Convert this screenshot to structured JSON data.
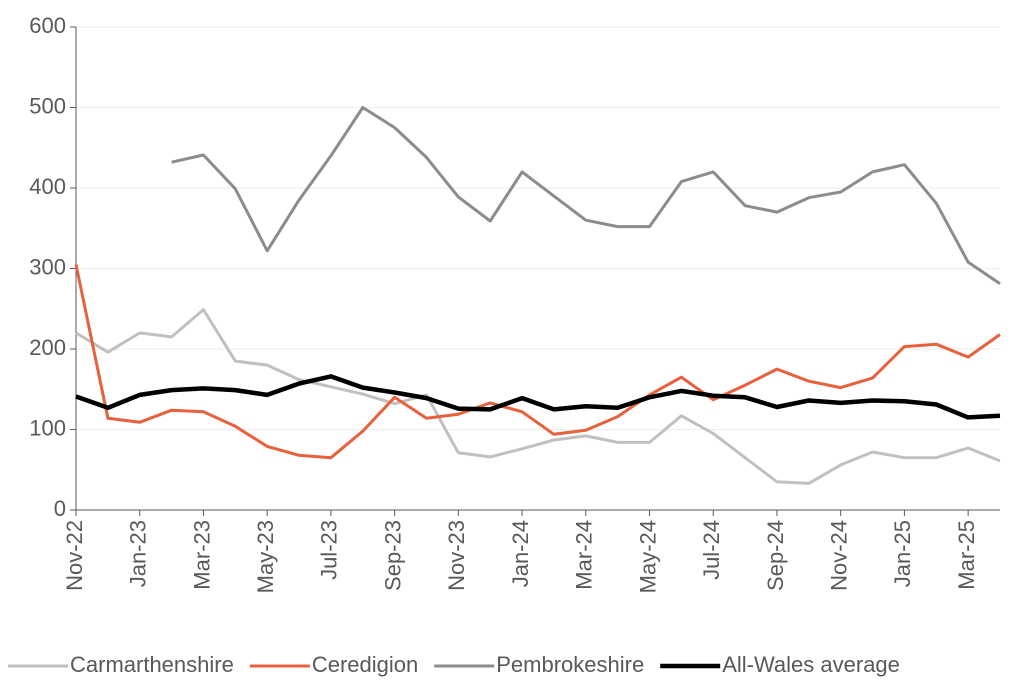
{
  "chart_data": {
    "type": "line",
    "categories": [
      "Nov-22",
      null,
      "Jan-23",
      null,
      "Mar-23",
      null,
      "May-23",
      null,
      "Jul-23",
      null,
      "Sep-23",
      null,
      "Nov-23",
      null,
      "Jan-24",
      null,
      "Mar-24",
      null,
      "May-24",
      null,
      "Jul-24",
      null,
      "Sep-24",
      null,
      "Nov-24",
      null,
      "Jan-25",
      null,
      "Mar-25",
      null
    ],
    "series": [
      {
        "name": "Carmarthenshire",
        "color": "#c0c0c0",
        "values": [
          220,
          196,
          220,
          215,
          249,
          185,
          180,
          162,
          153,
          144,
          132,
          143,
          71,
          66,
          76,
          87,
          92,
          84,
          84,
          117,
          95,
          65,
          35,
          33,
          56,
          72,
          65,
          65,
          77,
          61
        ]
      },
      {
        "name": "Ceredigion",
        "color": "#e8603c",
        "values": [
          305,
          114,
          109,
          124,
          122,
          104,
          79,
          68,
          65,
          98,
          140,
          114,
          119,
          133,
          122,
          94,
          99,
          116,
          143,
          165,
          137,
          155,
          175,
          160,
          152,
          164,
          203,
          206,
          190,
          218
        ]
      },
      {
        "name": "Pembrokeshire",
        "color": "#8c8c8c",
        "values": [
          null,
          null,
          null,
          432,
          441,
          399,
          322,
          385,
          440,
          500,
          475,
          438,
          389,
          359,
          420,
          390,
          360,
          352,
          352,
          408,
          420,
          378,
          370,
          388,
          395,
          420,
          429,
          381,
          308,
          281
        ]
      },
      {
        "name": "All-Wales average",
        "color": "#000000",
        "values": [
          141,
          127,
          143,
          149,
          151,
          149,
          143,
          157,
          166,
          152,
          146,
          139,
          126,
          125,
          139,
          125,
          129,
          127,
          140,
          148,
          142,
          140,
          128,
          136,
          133,
          136,
          135,
          131,
          115,
          117
        ]
      }
    ],
    "ylim": [
      0,
      600
    ],
    "yticks": [
      0,
      100,
      200,
      300,
      400,
      500,
      600
    ],
    "grid": true,
    "legend": "bottom"
  }
}
